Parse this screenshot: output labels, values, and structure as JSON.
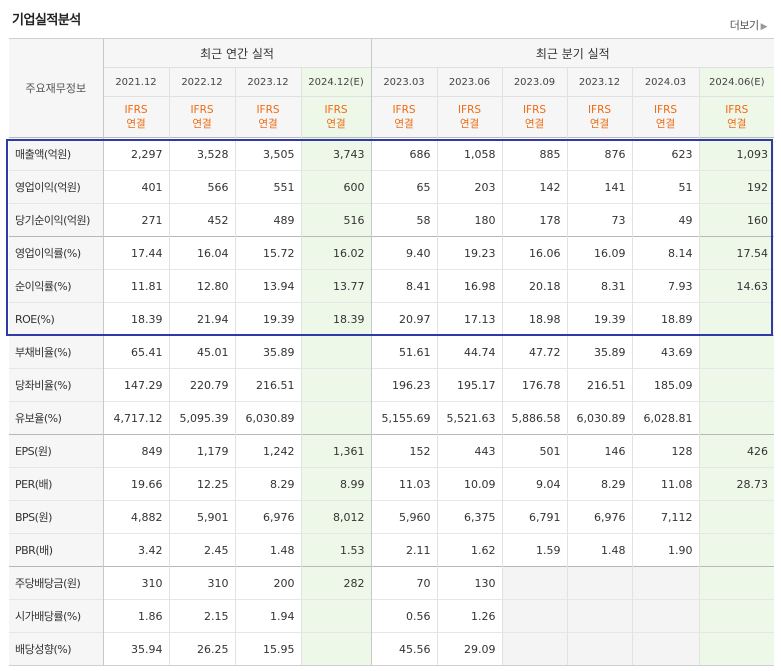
{
  "header": {
    "title": "기업실적분석",
    "more_label": "더보기",
    "more_arrow": "▶"
  },
  "table": {
    "corner_label": "주요재무정보",
    "groups": [
      "최근 연간 실적",
      "최근 분기 실적"
    ],
    "periods": [
      "2021.12",
      "2022.12",
      "2023.12",
      "2024.12(E)",
      "2023.03",
      "2023.06",
      "2023.09",
      "2023.12",
      "2024.03",
      "2024.06(E)"
    ],
    "basis_line1": "IFRS",
    "basis_line2": "연결",
    "rows": [
      {
        "label": "매출액(억원)",
        "values": [
          "2,297",
          "3,528",
          "3,505",
          "3,743",
          "686",
          "1,058",
          "885",
          "876",
          "623",
          "1,093"
        ]
      },
      {
        "label": "영업이익(억원)",
        "values": [
          "401",
          "566",
          "551",
          "600",
          "65",
          "203",
          "142",
          "141",
          "51",
          "192"
        ]
      },
      {
        "label": "당기순이익(억원)",
        "values": [
          "271",
          "452",
          "489",
          "516",
          "58",
          "180",
          "178",
          "73",
          "49",
          "160"
        ]
      },
      {
        "label": "영업이익률(%)",
        "values": [
          "17.44",
          "16.04",
          "15.72",
          "16.02",
          "9.40",
          "19.23",
          "16.06",
          "16.09",
          "8.14",
          "17.54"
        ]
      },
      {
        "label": "순이익률(%)",
        "values": [
          "11.81",
          "12.80",
          "13.94",
          "13.77",
          "8.41",
          "16.98",
          "20.18",
          "8.31",
          "7.93",
          "14.63"
        ]
      },
      {
        "label": "ROE(%)",
        "values": [
          "18.39",
          "21.94",
          "19.39",
          "18.39",
          "20.97",
          "17.13",
          "18.98",
          "19.39",
          "18.89",
          ""
        ]
      },
      {
        "label": "부채비율(%)",
        "values": [
          "65.41",
          "45.01",
          "35.89",
          "",
          "51.61",
          "44.74",
          "47.72",
          "35.89",
          "43.69",
          ""
        ]
      },
      {
        "label": "당좌비율(%)",
        "values": [
          "147.29",
          "220.79",
          "216.51",
          "",
          "196.23",
          "195.17",
          "176.78",
          "216.51",
          "185.09",
          ""
        ]
      },
      {
        "label": "유보율(%)",
        "values": [
          "4,717.12",
          "5,095.39",
          "6,030.89",
          "",
          "5,155.69",
          "5,521.63",
          "5,886.58",
          "6,030.89",
          "6,028.81",
          ""
        ]
      },
      {
        "label": "EPS(원)",
        "values": [
          "849",
          "1,179",
          "1,242",
          "1,361",
          "152",
          "443",
          "501",
          "146",
          "128",
          "426"
        ]
      },
      {
        "label": "PER(배)",
        "values": [
          "19.66",
          "12.25",
          "8.29",
          "8.99",
          "11.03",
          "10.09",
          "9.04",
          "8.29",
          "11.08",
          "28.73"
        ]
      },
      {
        "label": "BPS(원)",
        "values": [
          "4,882",
          "5,901",
          "6,976",
          "8,012",
          "5,960",
          "6,375",
          "6,791",
          "6,976",
          "7,112",
          ""
        ]
      },
      {
        "label": "PBR(배)",
        "values": [
          "3.42",
          "2.45",
          "1.48",
          "1.53",
          "2.11",
          "1.62",
          "1.59",
          "1.48",
          "1.90",
          ""
        ]
      },
      {
        "label": "주당배당금(원)",
        "values": [
          "310",
          "310",
          "200",
          "282",
          "70",
          "130",
          "",
          "",
          "",
          ""
        ]
      },
      {
        "label": "시가배당률(%)",
        "values": [
          "1.86",
          "2.15",
          "1.94",
          "",
          "0.56",
          "1.26",
          "",
          "",
          "",
          ""
        ]
      },
      {
        "label": "배당성향(%)",
        "values": [
          "35.94",
          "26.25",
          "15.95",
          "",
          "45.56",
          "29.09",
          "",
          "",
          "",
          ""
        ]
      }
    ]
  },
  "colors": {
    "highlight_border": "#2f3aa8",
    "ifrs_text": "#f06a10",
    "estimate_bg": "#eef8e8",
    "header_bg": "#f6f6f6"
  }
}
